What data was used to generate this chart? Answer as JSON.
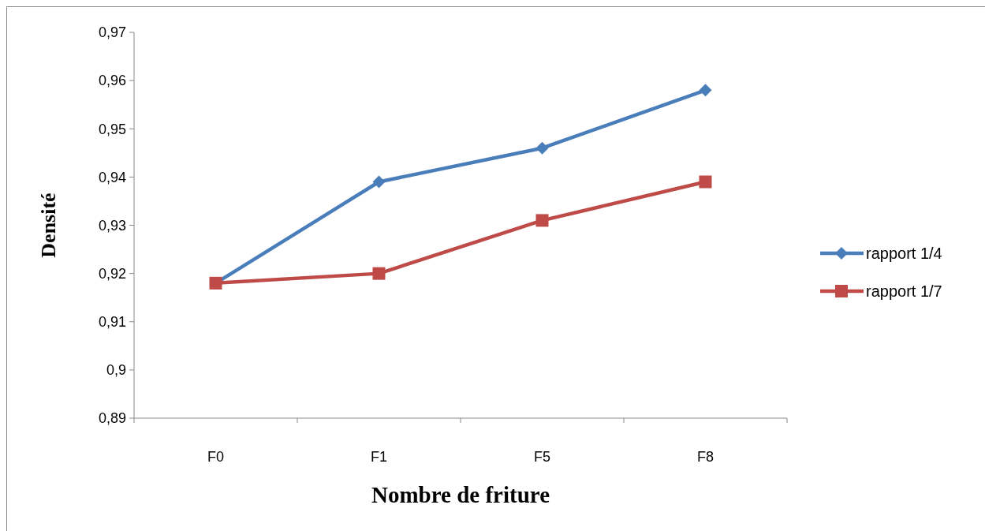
{
  "chart_data": {
    "type": "line",
    "xlabel": "Nombre de friture",
    "ylabel": "Densité",
    "categories": [
      "F0",
      "F1",
      "F5",
      "F8"
    ],
    "series": [
      {
        "name": "rapport 1/4",
        "color": "#4a7ebb",
        "marker": "diamond",
        "values": [
          0.918,
          0.939,
          0.946,
          0.958
        ]
      },
      {
        "name": "rapport 1/7",
        "color": "#be4b48",
        "marker": "square",
        "values": [
          0.918,
          0.92,
          0.931,
          0.939
        ]
      }
    ],
    "ylim": [
      0.89,
      0.97
    ],
    "yticks": [
      {
        "value": 0.89,
        "label": "0,89"
      },
      {
        "value": 0.9,
        "label": "0,9"
      },
      {
        "value": 0.91,
        "label": "0,91"
      },
      {
        "value": 0.92,
        "label": "0,92"
      },
      {
        "value": 0.93,
        "label": "0,93"
      },
      {
        "value": 0.94,
        "label": "0,94"
      },
      {
        "value": 0.95,
        "label": "0,95"
      },
      {
        "value": 0.96,
        "label": "0,96"
      },
      {
        "value": 0.97,
        "label": "0,97"
      }
    ],
    "legend": "right",
    "line_style": "solid"
  }
}
